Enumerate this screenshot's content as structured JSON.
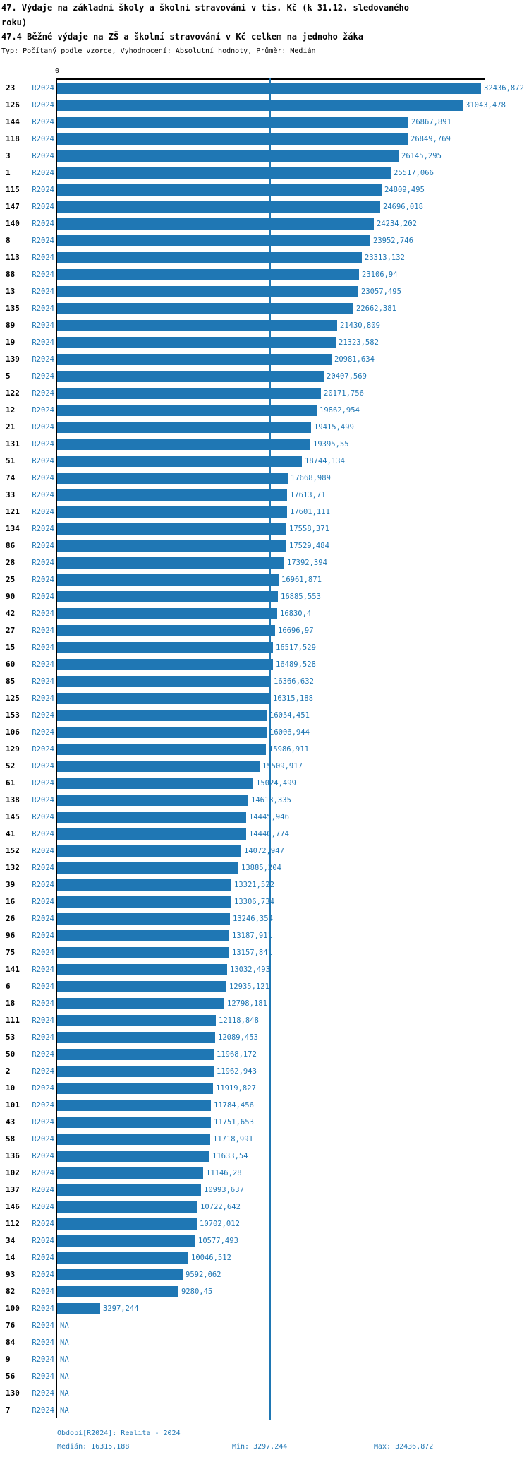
{
  "header": {
    "title": "47. Výdaje na základní školy a školní stravování v tis. Kč (k 31.12. sledovaného roku)",
    "subtitle": "47.4 Běžné výdaje na ZŠ a školní stravování v Kč celkem na jednoho žáka",
    "meta": "Typ: Počítaný podle vzorce, Vyhodnocení: Absolutní hodnoty, Průměr: Medián"
  },
  "chart_data": {
    "type": "bar",
    "orientation": "horizontal",
    "title": "47.4 Běžné výdaje na ZŠ a školní stravování v Kč celkem na jednoho žáka",
    "xlabel": "",
    "ylabel": "",
    "x_origin_tick": "0",
    "xlim": [
      0,
      32436.872
    ],
    "max_value": 32436.872,
    "median_value": 16315.188,
    "bar_color": "#1f77b4",
    "axis_color": "#000000",
    "median_line_color": "#1f77b4",
    "series_period": "R2024",
    "rows": [
      {
        "id": "23",
        "period": "R2024",
        "value": "32436,872"
      },
      {
        "id": "126",
        "period": "R2024",
        "value": "31043,478"
      },
      {
        "id": "144",
        "period": "R2024",
        "value": "26867,891"
      },
      {
        "id": "118",
        "period": "R2024",
        "value": "26849,769"
      },
      {
        "id": "3",
        "period": "R2024",
        "value": "26145,295"
      },
      {
        "id": "1",
        "period": "R2024",
        "value": "25517,066"
      },
      {
        "id": "115",
        "period": "R2024",
        "value": "24809,495"
      },
      {
        "id": "147",
        "period": "R2024",
        "value": "24696,018"
      },
      {
        "id": "140",
        "period": "R2024",
        "value": "24234,202"
      },
      {
        "id": "8",
        "period": "R2024",
        "value": "23952,746"
      },
      {
        "id": "113",
        "period": "R2024",
        "value": "23313,132"
      },
      {
        "id": "88",
        "period": "R2024",
        "value": "23106,94"
      },
      {
        "id": "13",
        "period": "R2024",
        "value": "23057,495"
      },
      {
        "id": "135",
        "period": "R2024",
        "value": "22662,381"
      },
      {
        "id": "89",
        "period": "R2024",
        "value": "21430,809"
      },
      {
        "id": "19",
        "period": "R2024",
        "value": "21323,582"
      },
      {
        "id": "139",
        "period": "R2024",
        "value": "20981,634"
      },
      {
        "id": "5",
        "period": "R2024",
        "value": "20407,569"
      },
      {
        "id": "122",
        "period": "R2024",
        "value": "20171,756"
      },
      {
        "id": "12",
        "period": "R2024",
        "value": "19862,954"
      },
      {
        "id": "21",
        "period": "R2024",
        "value": "19415,499"
      },
      {
        "id": "131",
        "period": "R2024",
        "value": "19395,55"
      },
      {
        "id": "51",
        "period": "R2024",
        "value": "18744,134"
      },
      {
        "id": "74",
        "period": "R2024",
        "value": "17668,989"
      },
      {
        "id": "33",
        "period": "R2024",
        "value": "17613,71"
      },
      {
        "id": "121",
        "period": "R2024",
        "value": "17601,111"
      },
      {
        "id": "134",
        "period": "R2024",
        "value": "17558,371"
      },
      {
        "id": "86",
        "period": "R2024",
        "value": "17529,484"
      },
      {
        "id": "28",
        "period": "R2024",
        "value": "17392,394"
      },
      {
        "id": "25",
        "period": "R2024",
        "value": "16961,871"
      },
      {
        "id": "90",
        "period": "R2024",
        "value": "16885,553"
      },
      {
        "id": "42",
        "period": "R2024",
        "value": "16830,4"
      },
      {
        "id": "27",
        "period": "R2024",
        "value": "16696,97"
      },
      {
        "id": "15",
        "period": "R2024",
        "value": "16517,529"
      },
      {
        "id": "60",
        "period": "R2024",
        "value": "16489,528"
      },
      {
        "id": "85",
        "period": "R2024",
        "value": "16366,632"
      },
      {
        "id": "125",
        "period": "R2024",
        "value": "16315,188"
      },
      {
        "id": "153",
        "period": "R2024",
        "value": "16054,451"
      },
      {
        "id": "106",
        "period": "R2024",
        "value": "16006,944"
      },
      {
        "id": "129",
        "period": "R2024",
        "value": "15986,911"
      },
      {
        "id": "52",
        "period": "R2024",
        "value": "15509,917"
      },
      {
        "id": "61",
        "period": "R2024",
        "value": "15024,499"
      },
      {
        "id": "138",
        "period": "R2024",
        "value": "14613,335"
      },
      {
        "id": "145",
        "period": "R2024",
        "value": "14445,946"
      },
      {
        "id": "41",
        "period": "R2024",
        "value": "14440,774"
      },
      {
        "id": "152",
        "period": "R2024",
        "value": "14072,947"
      },
      {
        "id": "132",
        "period": "R2024",
        "value": "13885,204"
      },
      {
        "id": "39",
        "period": "R2024",
        "value": "13321,522"
      },
      {
        "id": "16",
        "period": "R2024",
        "value": "13306,734"
      },
      {
        "id": "26",
        "period": "R2024",
        "value": "13246,354"
      },
      {
        "id": "96",
        "period": "R2024",
        "value": "13187,911"
      },
      {
        "id": "75",
        "period": "R2024",
        "value": "13157,841"
      },
      {
        "id": "141",
        "period": "R2024",
        "value": "13032,493"
      },
      {
        "id": "6",
        "period": "R2024",
        "value": "12935,121"
      },
      {
        "id": "18",
        "period": "R2024",
        "value": "12798,181"
      },
      {
        "id": "111",
        "period": "R2024",
        "value": "12118,848"
      },
      {
        "id": "53",
        "period": "R2024",
        "value": "12089,453"
      },
      {
        "id": "50",
        "period": "R2024",
        "value": "11968,172"
      },
      {
        "id": "2",
        "period": "R2024",
        "value": "11962,943"
      },
      {
        "id": "10",
        "period": "R2024",
        "value": "11919,827"
      },
      {
        "id": "101",
        "period": "R2024",
        "value": "11784,456"
      },
      {
        "id": "43",
        "period": "R2024",
        "value": "11751,653"
      },
      {
        "id": "58",
        "period": "R2024",
        "value": "11718,991"
      },
      {
        "id": "136",
        "period": "R2024",
        "value": "11633,54"
      },
      {
        "id": "102",
        "period": "R2024",
        "value": "11146,28"
      },
      {
        "id": "137",
        "period": "R2024",
        "value": "10993,637"
      },
      {
        "id": "146",
        "period": "R2024",
        "value": "10722,642"
      },
      {
        "id": "112",
        "period": "R2024",
        "value": "10702,012"
      },
      {
        "id": "34",
        "period": "R2024",
        "value": "10577,493"
      },
      {
        "id": "14",
        "period": "R2024",
        "value": "10046,512"
      },
      {
        "id": "93",
        "period": "R2024",
        "value": "9592,062"
      },
      {
        "id": "82",
        "period": "R2024",
        "value": "9280,45"
      },
      {
        "id": "100",
        "period": "R2024",
        "value": "3297,244"
      },
      {
        "id": "76",
        "period": "R2024",
        "value": "NA"
      },
      {
        "id": "84",
        "period": "R2024",
        "value": "NA"
      },
      {
        "id": "9",
        "period": "R2024",
        "value": "NA"
      },
      {
        "id": "56",
        "period": "R2024",
        "value": "NA"
      },
      {
        "id": "130",
        "period": "R2024",
        "value": "NA"
      },
      {
        "id": "7",
        "period": "R2024",
        "value": "NA"
      }
    ]
  },
  "footer": {
    "period_line": "Období[R2024]: Realita - 2024",
    "median_label": "Medián: 16315,188",
    "min_label": "Min: 3297,244",
    "max_label": "Max: 32436,872"
  }
}
